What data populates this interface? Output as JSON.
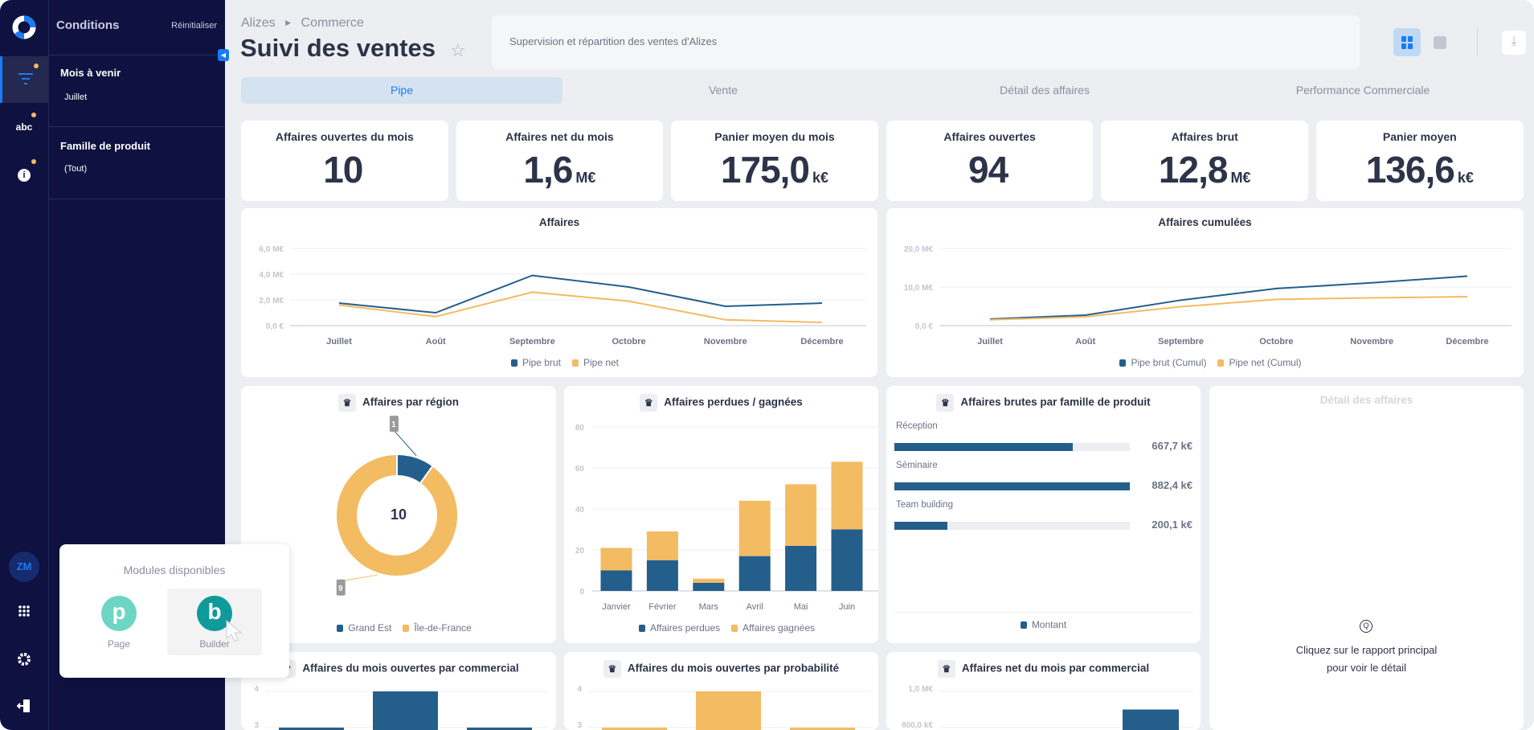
{
  "colors": {
    "navy": "#0f1140",
    "brut": "#245f8c",
    "net": "#f3bb62",
    "accent": "#1a7cf5"
  },
  "rail": {
    "items": [
      {
        "icon": "filter-icon",
        "active": true
      },
      {
        "icon": "abc-icon",
        "label": "abc"
      },
      {
        "icon": "info-icon",
        "label": "i"
      }
    ],
    "avatar": "ZM",
    "bottom": [
      "apps-grid-icon",
      "gear-icon",
      "logout-icon"
    ]
  },
  "filters": {
    "title": "Conditions",
    "reset": "Réinitialiser",
    "groups": [
      {
        "label": "Mois à venir",
        "value": "Juillet"
      },
      {
        "label": "Famille de produit",
        "value": "(Tout)"
      }
    ]
  },
  "header": {
    "breadcrumb": [
      "Alizes",
      "Commerce"
    ],
    "title": "Suivi des ventes",
    "description": "Supervision et répartition des ventes d'Alizes"
  },
  "tabs": [
    {
      "label": "Pipe",
      "active": true
    },
    {
      "label": "Vente"
    },
    {
      "label": "Détail des affaires"
    },
    {
      "label": "Performance Commerciale"
    }
  ],
  "kpis": [
    {
      "title": "Affaires ouvertes du mois",
      "value": "10",
      "unit": ""
    },
    {
      "title": "Affaires net du mois",
      "value": "1,6",
      "unit": "M€"
    },
    {
      "title": "Panier moyen du mois",
      "value": "175,0",
      "unit": "k€"
    },
    {
      "title": "Affaires ouvertes",
      "value": "94",
      "unit": ""
    },
    {
      "title": "Affaires brut",
      "value": "12,8",
      "unit": "M€"
    },
    {
      "title": "Panier moyen",
      "value": "136,6",
      "unit": "k€"
    }
  ],
  "chart_data": [
    {
      "type": "line",
      "title": "Affaires",
      "categories": [
        "Juillet",
        "Août",
        "Septembre",
        "Octobre",
        "Novembre",
        "Décembre"
      ],
      "yticks": [
        "0,0 €",
        "2,0 M€",
        "4,0 M€",
        "6,0 M€"
      ],
      "ylim": [
        0,
        6
      ],
      "unit": "M€",
      "series": [
        {
          "name": "Pipe brut",
          "values": [
            1.75,
            1.0,
            3.9,
            3.0,
            1.5,
            1.75
          ]
        },
        {
          "name": "Pipe net",
          "values": [
            1.6,
            0.7,
            2.6,
            1.9,
            0.45,
            0.25
          ]
        }
      ]
    },
    {
      "type": "line",
      "title": "Affaires cumulées",
      "categories": [
        "Juillet",
        "Août",
        "Septembre",
        "Octobre",
        "Novembre",
        "Décembre"
      ],
      "yticks": [
        "0,0 €",
        "10,0 M€",
        "20,0 M€"
      ],
      "ylim": [
        0,
        20
      ],
      "unit": "M€",
      "series": [
        {
          "name": "Pipe brut (Cumul)",
          "values": [
            1.7,
            2.7,
            6.6,
            9.6,
            11.1,
            12.8
          ]
        },
        {
          "name": "Pipe net (Cumul)",
          "values": [
            1.5,
            2.3,
            4.9,
            6.8,
            7.2,
            7.5
          ]
        }
      ]
    },
    {
      "type": "pie",
      "title": "Affaires par région",
      "total": "10",
      "categories": [
        "Grand Est",
        "Île-de-France"
      ],
      "values": [
        1,
        9
      ]
    },
    {
      "type": "bar",
      "stacked": true,
      "title": "Affaires perdues / gagnées",
      "categories": [
        "Janvier",
        "Février",
        "Mars",
        "Avril",
        "Mai",
        "Juin"
      ],
      "yticks": [
        "0",
        "20",
        "40",
        "60",
        "80"
      ],
      "ylim": [
        0,
        80
      ],
      "series": [
        {
          "name": "Affaires perdues",
          "values": [
            10,
            15,
            4,
            17,
            22,
            30
          ]
        },
        {
          "name": "Affaires gagnées",
          "values": [
            11,
            14,
            2,
            27,
            30,
            33
          ]
        }
      ]
    },
    {
      "type": "bar",
      "orientation": "horizontal",
      "title": "Affaires brutes par famille de produit",
      "legend": "Montant",
      "categories": [
        "Réception",
        "Séminaire",
        "Team building"
      ],
      "values": [
        667.7,
        882.4,
        200.1
      ],
      "labels": [
        "667,7 k€",
        "882,4 k€",
        "200,1 k€"
      ]
    },
    {
      "type": "bar",
      "title": "Affaires du mois ouvertes par commercial",
      "yticks": [
        "3",
        "4"
      ],
      "values": [
        3,
        4,
        3
      ]
    },
    {
      "type": "bar",
      "title": "Affaires du mois ouvertes par probabilité",
      "yticks": [
        "3",
        "4"
      ],
      "values": [
        3,
        4,
        3
      ]
    },
    {
      "type": "bar",
      "title": "Affaires net du mois par commercial",
      "yticks": [
        "800,0 k€",
        "1,0 M€"
      ],
      "values": [
        900
      ]
    }
  ],
  "detail": {
    "title": "Détail des affaires",
    "hint_line1": "Cliquez sur le rapport principal",
    "hint_line2": "pour voir le détail"
  },
  "modules": {
    "title": "Modules disponibles",
    "items": [
      {
        "letter": "p",
        "label": "Page",
        "color": "#6dd5c4"
      },
      {
        "letter": "b",
        "label": "Builder",
        "color": "#109a9a"
      }
    ]
  }
}
